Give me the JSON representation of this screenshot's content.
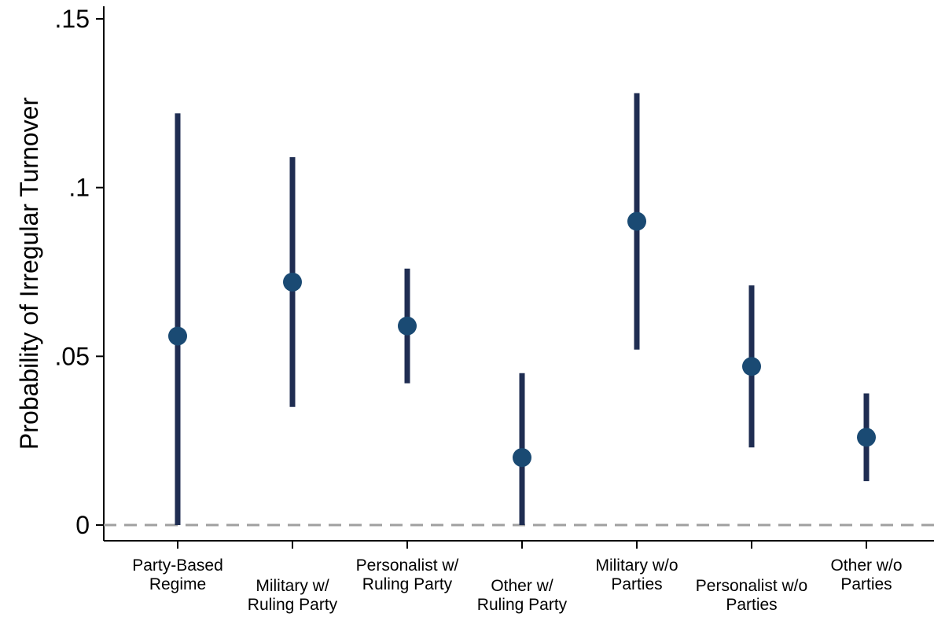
{
  "chart_data": {
    "type": "scatter",
    "subtype": "point-with-error-bars",
    "ylabel": "Probability of Irregular Turnover",
    "xlabel": "",
    "ylim": [
      0,
      0.155
    ],
    "yticks": [
      {
        "value": 0,
        "label": "0"
      },
      {
        "value": 0.05,
        "label": ".05"
      },
      {
        "value": 0.1,
        "label": ".1"
      },
      {
        "value": 0.15,
        "label": ".15"
      }
    ],
    "reference_line": {
      "y": 0,
      "style": "dashed"
    },
    "grid": false,
    "legend": "none",
    "categories": [
      [
        "Party-Based",
        "Regime"
      ],
      [
        "Military w/",
        "Ruling Party"
      ],
      [
        "Personalist w/",
        "Ruling Party"
      ],
      [
        "Other w/",
        "Ruling Party"
      ],
      [
        "Military w/o",
        "Parties"
      ],
      [
        "Personalist w/o",
        "Parties"
      ],
      [
        "Other w/o",
        "Parties"
      ]
    ],
    "label_row": [
      0,
      1,
      0,
      1,
      0,
      1,
      0
    ],
    "points": [
      {
        "estimate": 0.056,
        "lower": 0.0,
        "upper": 0.122
      },
      {
        "estimate": 0.072,
        "lower": 0.035,
        "upper": 0.109
      },
      {
        "estimate": 0.059,
        "lower": 0.042,
        "upper": 0.076
      },
      {
        "estimate": 0.02,
        "lower": 0.0,
        "upper": 0.045
      },
      {
        "estimate": 0.09,
        "lower": 0.052,
        "upper": 0.128
      },
      {
        "estimate": 0.047,
        "lower": 0.023,
        "upper": 0.071
      },
      {
        "estimate": 0.026,
        "lower": 0.013,
        "upper": 0.039
      }
    ],
    "colors": {
      "bar": "#1f2d52",
      "marker": "#1a4a73",
      "reference": "#a0a0a0",
      "axis": "#000000"
    }
  }
}
